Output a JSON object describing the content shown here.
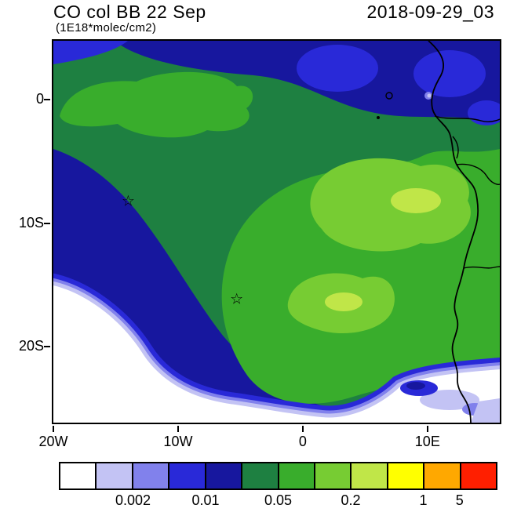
{
  "header": {
    "title": "CO col BB 22 Sep",
    "units": "(1E18*molec/cm2)",
    "date": "2018-09-29_03"
  },
  "palette": {
    "c1": "#ffffff",
    "c2": "#c3c3f4",
    "c3": "#8181ec",
    "c4": "#2929d8",
    "c5": "#17179e",
    "c6": "#1e8041",
    "c7": "#39ad2c",
    "c8": "#77cc33",
    "c9": "#c0e648",
    "c10": "#ffff00",
    "c11": "#ffa800",
    "c12": "#ff1f00"
  },
  "chart_data": {
    "type": "heatmap",
    "subtype": "filled_contour_map",
    "title": "CO col BB 22 Sep",
    "units_label": "(1E18*molec/cm2)",
    "timestamp_label": "2018-09-29_03",
    "lon_range": [
      -20,
      15.8
    ],
    "lat_range": [
      4.8,
      -26.2
    ],
    "grid": false,
    "x_ticks": [
      {
        "lon": -20,
        "label": "20W"
      },
      {
        "lon": -10,
        "label": "10W"
      },
      {
        "lon": 0,
        "label": "0"
      },
      {
        "lon": 10,
        "label": "10E"
      }
    ],
    "y_ticks": [
      {
        "lat": 0,
        "label": "0"
      },
      {
        "lat": -10,
        "label": "10S"
      },
      {
        "lat": -20,
        "label": "20S"
      }
    ],
    "colorbar": {
      "orientation": "horizontal",
      "position": "bottom",
      "n_cells": 12,
      "cell_colors": [
        "#ffffff",
        "#c3c3f4",
        "#8181ec",
        "#2929d8",
        "#17179e",
        "#1e8041",
        "#39ad2c",
        "#77cc33",
        "#c0e648",
        "#ffff00",
        "#ffa800",
        "#ff1f00"
      ],
      "tick_labels": [
        {
          "label": "0.002",
          "boundary_index": 2
        },
        {
          "label": "0.01",
          "boundary_index": 4
        },
        {
          "label": "0.05",
          "boundary_index": 6
        },
        {
          "label": "0.2",
          "boundary_index": 8
        },
        {
          "label": "1",
          "boundary_index": 10
        },
        {
          "label": "5",
          "boundary_index": 11
        }
      ]
    },
    "markers": [
      {
        "type": "star",
        "lon": -14.0,
        "lat": -8.3
      },
      {
        "type": "star",
        "lon": -5.3,
        "lat": -16.3
      }
    ]
  }
}
